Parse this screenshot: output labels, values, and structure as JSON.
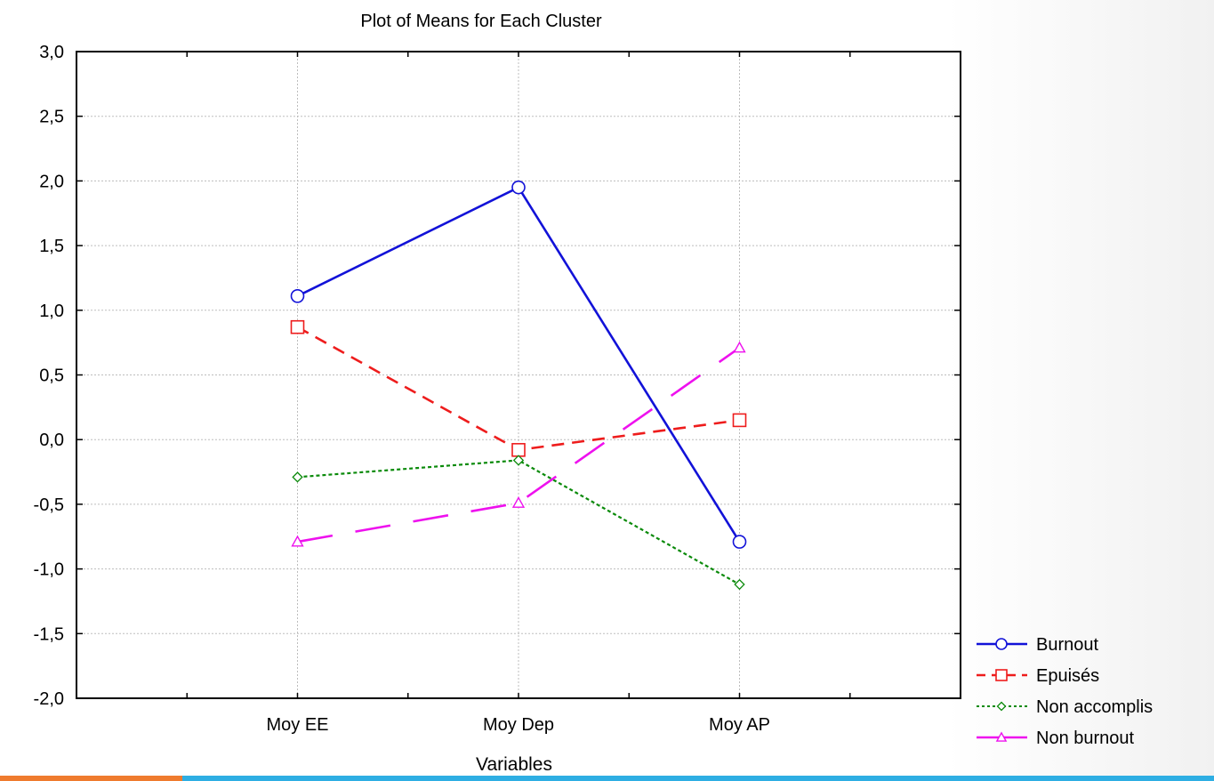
{
  "chart_data": {
    "type": "line",
    "title": "Plot of Means for Each Cluster",
    "xlabel": "Variables",
    "ylabel": "",
    "categories": [
      "Moy EE",
      "Moy Dep",
      "Moy AP"
    ],
    "ylim": [
      -2.0,
      3.0
    ],
    "yticks": [
      "-2,0",
      "-1,5",
      "-1,0",
      "-0,5",
      "0,0",
      "0,5",
      "1,0",
      "1,5",
      "2,0",
      "2,5",
      "3,0"
    ],
    "grid": true,
    "legend_position": "bottom-right, outside plot",
    "series": [
      {
        "name": "Burnout",
        "values": [
          1.11,
          1.95,
          -0.79
        ],
        "color": "#1212d8",
        "marker": "circle",
        "dash": "solid"
      },
      {
        "name": "Epuisés",
        "values": [
          0.87,
          -0.08,
          0.15
        ],
        "color": "#ee1c1c",
        "marker": "square",
        "dash": "dashed"
      },
      {
        "name": "Non accomplis",
        "values": [
          -0.29,
          -0.16,
          -1.12
        ],
        "color": "#0a8a0a",
        "marker": "diamond",
        "dash": "dotted"
      },
      {
        "name": "Non burnout",
        "values": [
          -0.79,
          -0.49,
          0.71
        ],
        "color": "#ee11ee",
        "marker": "triangle",
        "dash": "long-dash"
      }
    ]
  }
}
